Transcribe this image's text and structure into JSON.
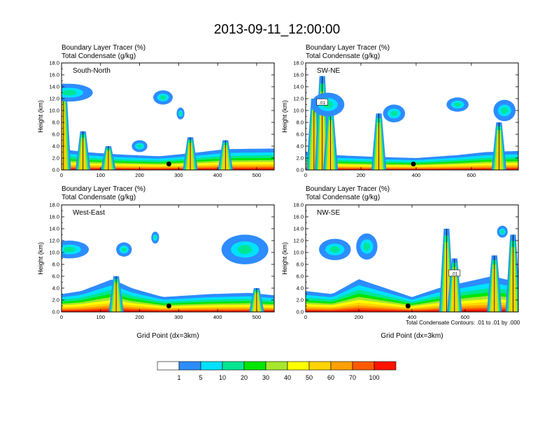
{
  "title": "2013-09-11_12:00:00",
  "footnote": "Total Condensate Contours: .01 to .01 by .000",
  "colorbar": {
    "colors": [
      "#ffffff",
      "#2d8cff",
      "#00e1ff",
      "#00e691",
      "#00e600",
      "#a6e62d",
      "#ffff00",
      "#ffd400",
      "#ffa000",
      "#ff5a00",
      "#ff1400"
    ],
    "labels": [
      "1",
      "5",
      "10",
      "20",
      "30",
      "40",
      "50",
      "60",
      "70",
      "100"
    ]
  },
  "chart_data": [
    {
      "type": "heatmap",
      "panel": "South-North",
      "var1": "Boundary Layer Tracer   (%)",
      "var2": "Total Condensate   (g/kg)",
      "ylabel": "Height (km)",
      "xlabel": "",
      "xlim": [
        0,
        545
      ],
      "ylim": [
        0,
        18
      ],
      "xticks": [
        "0",
        "100",
        "200",
        "300",
        "400",
        "500"
      ],
      "xtick_values": [
        0,
        100,
        200,
        300,
        400,
        500
      ],
      "yticks": [
        "0.0",
        "2.0",
        "4.0",
        "6.0",
        "8.0",
        "10.0",
        "12.0",
        "14.0",
        "16.0",
        "18.0"
      ],
      "marker": [
        275,
        1.0
      ],
      "contour_label": "",
      "boundary_layer": [
        [
          0,
          3.5
        ],
        [
          60,
          3.0
        ],
        [
          150,
          2.6
        ],
        [
          250,
          2.3
        ],
        [
          330,
          2.8
        ],
        [
          420,
          3.5
        ],
        [
          545,
          3.6
        ]
      ],
      "plumes": [
        [
          5,
          14.5
        ],
        [
          55,
          6.5
        ],
        [
          120,
          4.0
        ],
        [
          330,
          5.5
        ],
        [
          420,
          5.0
        ]
      ],
      "clouds": [
        [
          20,
          13.0,
          60,
          1.5
        ],
        [
          260,
          12.2,
          25,
          1.2
        ],
        [
          200,
          4.0,
          20,
          1.0
        ],
        [
          305,
          9.5,
          10,
          1.0
        ]
      ]
    },
    {
      "type": "heatmap",
      "panel": "SW-NE",
      "var1": "Boundary Layer Tracer   (%)",
      "var2": "Total Condensate   (g/kg)",
      "ylabel": "Height (km)",
      "xlabel": "",
      "xlim": [
        0,
        770
      ],
      "ylim": [
        0,
        18
      ],
      "xticks": [
        "0",
        "200",
        "400",
        "600"
      ],
      "xtick_values": [
        0,
        200,
        400,
        600
      ],
      "yticks": [
        "0.0",
        "2.0",
        "4.0",
        "6.0",
        "8.0",
        "10.0",
        "12.0",
        "14.0",
        "16.0",
        "18.0"
      ],
      "marker": [
        390,
        1.0
      ],
      "contour_label": ".01",
      "boundary_layer": [
        [
          0,
          3.0
        ],
        [
          100,
          2.5
        ],
        [
          250,
          2.2
        ],
        [
          400,
          2.0
        ],
        [
          550,
          2.5
        ],
        [
          650,
          3.0
        ],
        [
          770,
          3.2
        ]
      ],
      "plumes": [
        [
          30,
          12.0
        ],
        [
          60,
          15.8
        ],
        [
          90,
          10.0
        ],
        [
          265,
          9.5
        ],
        [
          700,
          8.0
        ]
      ],
      "clouds": [
        [
          80,
          11.0,
          60,
          2.0
        ],
        [
          320,
          9.5,
          40,
          1.5
        ],
        [
          550,
          11.0,
          40,
          1.2
        ],
        [
          720,
          10.0,
          40,
          1.8
        ]
      ]
    },
    {
      "type": "heatmap",
      "panel": "West-East",
      "var1": "Boundary Layer Tracer   (%)",
      "var2": "Total Condensate   (g/kg)",
      "ylabel": "Height (km)",
      "xlabel": "Grid Point (dx=3km)",
      "xlim": [
        0,
        545
      ],
      "ylim": [
        0,
        18
      ],
      "xticks": [
        "0",
        "100",
        "200",
        "300",
        "400",
        "500"
      ],
      "xtick_values": [
        0,
        100,
        200,
        300,
        400,
        500
      ],
      "yticks": [
        "0.0",
        "2.0",
        "4.0",
        "6.0",
        "8.0",
        "10.0",
        "12.0",
        "14.0",
        "16.0",
        "18.0"
      ],
      "marker": [
        275,
        1.0
      ],
      "contour_label": "",
      "boundary_layer": [
        [
          0,
          3.0
        ],
        [
          50,
          3.5
        ],
        [
          130,
          5.5
        ],
        [
          180,
          4.0
        ],
        [
          260,
          2.5
        ],
        [
          380,
          3.0
        ],
        [
          480,
          3.2
        ],
        [
          545,
          2.8
        ]
      ],
      "plumes": [
        [
          140,
          6.0
        ],
        [
          500,
          4.0
        ]
      ],
      "clouds": [
        [
          20,
          10.5,
          50,
          1.5
        ],
        [
          160,
          10.5,
          20,
          1.2
        ],
        [
          240,
          12.5,
          10,
          1.0
        ],
        [
          470,
          10.5,
          60,
          2.5
        ]
      ]
    },
    {
      "type": "heatmap",
      "panel": "NW-SE",
      "var1": "Boundary Layer Tracer   (%)",
      "var2": "Total Condensate   (g/kg)",
      "ylabel": "Height (km)",
      "xlabel": "Grid Point (dx=3km)",
      "xlim": [
        0,
        800
      ],
      "ylim": [
        0,
        18
      ],
      "xticks": [
        "0",
        "200",
        "400",
        "600"
      ],
      "xtick_values": [
        0,
        200,
        400,
        600
      ],
      "yticks": [
        "0.0",
        "2.0",
        "4.0",
        "6.0",
        "8.0",
        "10.0",
        "12.0",
        "14.0",
        "16.0",
        "18.0"
      ],
      "marker": [
        385,
        1.0
      ],
      "contour_label": ".01",
      "boundary_layer": [
        [
          0,
          3.5
        ],
        [
          100,
          3.0
        ],
        [
          200,
          5.5
        ],
        [
          300,
          4.0
        ],
        [
          400,
          2.5
        ],
        [
          500,
          4.0
        ],
        [
          600,
          5.0
        ],
        [
          700,
          6.0
        ],
        [
          800,
          5.0
        ]
      ],
      "plumes": [
        [
          530,
          14.0
        ],
        [
          560,
          9.0
        ],
        [
          710,
          9.5
        ],
        [
          780,
          13.0
        ]
      ],
      "clouds": [
        [
          110,
          10.5,
          60,
          1.8
        ],
        [
          230,
          11.0,
          40,
          2.2
        ],
        [
          740,
          13.5,
          20,
          1.0
        ]
      ]
    }
  ]
}
